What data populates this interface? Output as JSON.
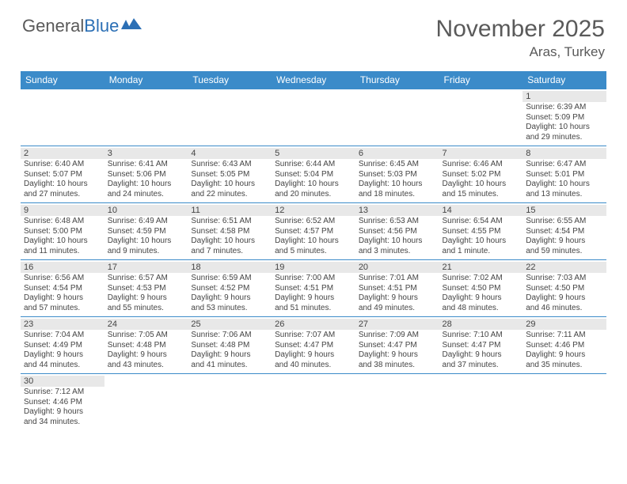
{
  "logo": {
    "part1": "General",
    "part2": "Blue"
  },
  "title": "November 2025",
  "location": "Aras, Turkey",
  "colors": {
    "header_bg": "#3b8bc9",
    "header_text": "#ffffff",
    "border": "#3b8bc9",
    "daynum_bg": "#e8e8e8",
    "text": "#444444",
    "logo_gray": "#5a5a5a",
    "logo_blue": "#2b6fb5"
  },
  "day_names": [
    "Sunday",
    "Monday",
    "Tuesday",
    "Wednesday",
    "Thursday",
    "Friday",
    "Saturday"
  ],
  "weeks": [
    [
      null,
      null,
      null,
      null,
      null,
      null,
      {
        "d": "1",
        "sr": "Sunrise: 6:39 AM",
        "ss": "Sunset: 5:09 PM",
        "dl1": "Daylight: 10 hours",
        "dl2": "and 29 minutes."
      }
    ],
    [
      {
        "d": "2",
        "sr": "Sunrise: 6:40 AM",
        "ss": "Sunset: 5:07 PM",
        "dl1": "Daylight: 10 hours",
        "dl2": "and 27 minutes."
      },
      {
        "d": "3",
        "sr": "Sunrise: 6:41 AM",
        "ss": "Sunset: 5:06 PM",
        "dl1": "Daylight: 10 hours",
        "dl2": "and 24 minutes."
      },
      {
        "d": "4",
        "sr": "Sunrise: 6:43 AM",
        "ss": "Sunset: 5:05 PM",
        "dl1": "Daylight: 10 hours",
        "dl2": "and 22 minutes."
      },
      {
        "d": "5",
        "sr": "Sunrise: 6:44 AM",
        "ss": "Sunset: 5:04 PM",
        "dl1": "Daylight: 10 hours",
        "dl2": "and 20 minutes."
      },
      {
        "d": "6",
        "sr": "Sunrise: 6:45 AM",
        "ss": "Sunset: 5:03 PM",
        "dl1": "Daylight: 10 hours",
        "dl2": "and 18 minutes."
      },
      {
        "d": "7",
        "sr": "Sunrise: 6:46 AM",
        "ss": "Sunset: 5:02 PM",
        "dl1": "Daylight: 10 hours",
        "dl2": "and 15 minutes."
      },
      {
        "d": "8",
        "sr": "Sunrise: 6:47 AM",
        "ss": "Sunset: 5:01 PM",
        "dl1": "Daylight: 10 hours",
        "dl2": "and 13 minutes."
      }
    ],
    [
      {
        "d": "9",
        "sr": "Sunrise: 6:48 AM",
        "ss": "Sunset: 5:00 PM",
        "dl1": "Daylight: 10 hours",
        "dl2": "and 11 minutes."
      },
      {
        "d": "10",
        "sr": "Sunrise: 6:49 AM",
        "ss": "Sunset: 4:59 PM",
        "dl1": "Daylight: 10 hours",
        "dl2": "and 9 minutes."
      },
      {
        "d": "11",
        "sr": "Sunrise: 6:51 AM",
        "ss": "Sunset: 4:58 PM",
        "dl1": "Daylight: 10 hours",
        "dl2": "and 7 minutes."
      },
      {
        "d": "12",
        "sr": "Sunrise: 6:52 AM",
        "ss": "Sunset: 4:57 PM",
        "dl1": "Daylight: 10 hours",
        "dl2": "and 5 minutes."
      },
      {
        "d": "13",
        "sr": "Sunrise: 6:53 AM",
        "ss": "Sunset: 4:56 PM",
        "dl1": "Daylight: 10 hours",
        "dl2": "and 3 minutes."
      },
      {
        "d": "14",
        "sr": "Sunrise: 6:54 AM",
        "ss": "Sunset: 4:55 PM",
        "dl1": "Daylight: 10 hours",
        "dl2": "and 1 minute."
      },
      {
        "d": "15",
        "sr": "Sunrise: 6:55 AM",
        "ss": "Sunset: 4:54 PM",
        "dl1": "Daylight: 9 hours",
        "dl2": "and 59 minutes."
      }
    ],
    [
      {
        "d": "16",
        "sr": "Sunrise: 6:56 AM",
        "ss": "Sunset: 4:54 PM",
        "dl1": "Daylight: 9 hours",
        "dl2": "and 57 minutes."
      },
      {
        "d": "17",
        "sr": "Sunrise: 6:57 AM",
        "ss": "Sunset: 4:53 PM",
        "dl1": "Daylight: 9 hours",
        "dl2": "and 55 minutes."
      },
      {
        "d": "18",
        "sr": "Sunrise: 6:59 AM",
        "ss": "Sunset: 4:52 PM",
        "dl1": "Daylight: 9 hours",
        "dl2": "and 53 minutes."
      },
      {
        "d": "19",
        "sr": "Sunrise: 7:00 AM",
        "ss": "Sunset: 4:51 PM",
        "dl1": "Daylight: 9 hours",
        "dl2": "and 51 minutes."
      },
      {
        "d": "20",
        "sr": "Sunrise: 7:01 AM",
        "ss": "Sunset: 4:51 PM",
        "dl1": "Daylight: 9 hours",
        "dl2": "and 49 minutes."
      },
      {
        "d": "21",
        "sr": "Sunrise: 7:02 AM",
        "ss": "Sunset: 4:50 PM",
        "dl1": "Daylight: 9 hours",
        "dl2": "and 48 minutes."
      },
      {
        "d": "22",
        "sr": "Sunrise: 7:03 AM",
        "ss": "Sunset: 4:50 PM",
        "dl1": "Daylight: 9 hours",
        "dl2": "and 46 minutes."
      }
    ],
    [
      {
        "d": "23",
        "sr": "Sunrise: 7:04 AM",
        "ss": "Sunset: 4:49 PM",
        "dl1": "Daylight: 9 hours",
        "dl2": "and 44 minutes."
      },
      {
        "d": "24",
        "sr": "Sunrise: 7:05 AM",
        "ss": "Sunset: 4:48 PM",
        "dl1": "Daylight: 9 hours",
        "dl2": "and 43 minutes."
      },
      {
        "d": "25",
        "sr": "Sunrise: 7:06 AM",
        "ss": "Sunset: 4:48 PM",
        "dl1": "Daylight: 9 hours",
        "dl2": "and 41 minutes."
      },
      {
        "d": "26",
        "sr": "Sunrise: 7:07 AM",
        "ss": "Sunset: 4:47 PM",
        "dl1": "Daylight: 9 hours",
        "dl2": "and 40 minutes."
      },
      {
        "d": "27",
        "sr": "Sunrise: 7:09 AM",
        "ss": "Sunset: 4:47 PM",
        "dl1": "Daylight: 9 hours",
        "dl2": "and 38 minutes."
      },
      {
        "d": "28",
        "sr": "Sunrise: 7:10 AM",
        "ss": "Sunset: 4:47 PM",
        "dl1": "Daylight: 9 hours",
        "dl2": "and 37 minutes."
      },
      {
        "d": "29",
        "sr": "Sunrise: 7:11 AM",
        "ss": "Sunset: 4:46 PM",
        "dl1": "Daylight: 9 hours",
        "dl2": "and 35 minutes."
      }
    ],
    [
      {
        "d": "30",
        "sr": "Sunrise: 7:12 AM",
        "ss": "Sunset: 4:46 PM",
        "dl1": "Daylight: 9 hours",
        "dl2": "and 34 minutes."
      },
      null,
      null,
      null,
      null,
      null,
      null
    ]
  ]
}
